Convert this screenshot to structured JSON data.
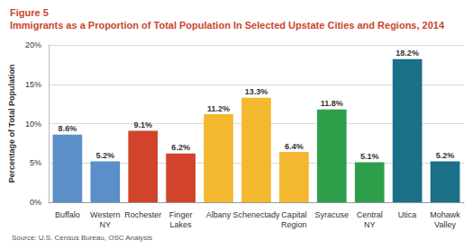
{
  "chart_data": {
    "type": "bar",
    "title": "Figure 5",
    "subtitle": "Immigrants as a Proportion of Total Population In Selected Upstate Cities and Regions, 2014",
    "annotations": [
      "Source: U.S. Census Bureau, OSC Analysis"
    ],
    "y_label": "Percentage of Total Population",
    "categories": [
      "Buffalo",
      "Western NY",
      "Rochester",
      "Finger Lakes",
      "Albany",
      "Schenectady",
      "Capital Region",
      "Syracuse",
      "Central NY",
      "Utica",
      "Mohawk Valley"
    ],
    "values": [
      8.6,
      5.2,
      9.1,
      6.2,
      11.2,
      13.3,
      6.4,
      11.8,
      5.1,
      18.2,
      5.2
    ],
    "value_labels": [
      "8.6%",
      "5.2%",
      "9.1%",
      "6.2%",
      "11.2%",
      "13.3%",
      "6.4%",
      "11.8%",
      "5.1%",
      "18.2%",
      "5.2%"
    ],
    "colors": [
      "#5b8fc9",
      "#5b8fc9",
      "#d2432c",
      "#d2432c",
      "#f4b830",
      "#f4b830",
      "#f4b830",
      "#2f9e4b",
      "#2f9e4b",
      "#1b6f88",
      "#1b6f88"
    ],
    "ylim": [
      0,
      20
    ],
    "yticks": [
      {
        "value": 0,
        "label": "0%"
      },
      {
        "value": 5,
        "label": "5%"
      },
      {
        "value": 10,
        "label": "10%"
      },
      {
        "value": 15,
        "label": "15%"
      },
      {
        "value": 20,
        "label": "20%"
      }
    ],
    "grid": true,
    "data_labels": true
  }
}
